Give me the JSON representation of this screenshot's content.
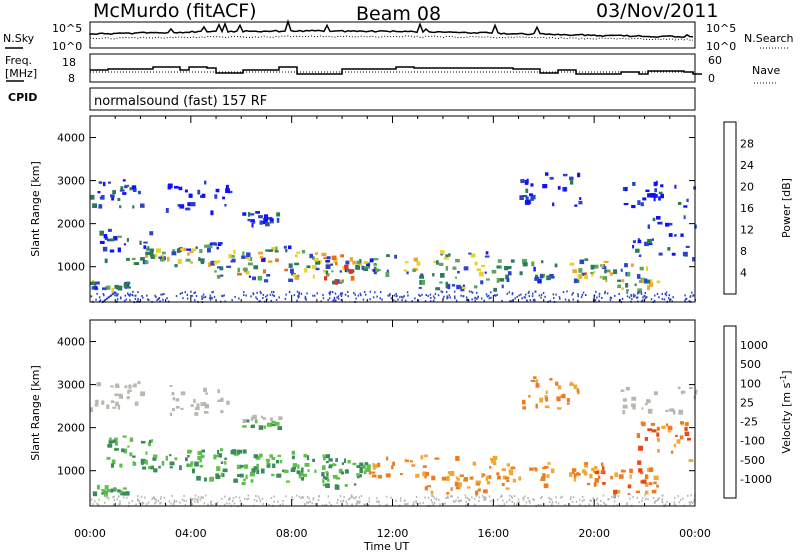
{
  "header": {
    "station": "McMurdo (fitACF)",
    "beam": "Beam 08",
    "date": "03/Nov/2011"
  },
  "noise_panel": {
    "left_label": "N.Sky",
    "right_label": "N.Search",
    "ticks_left": [
      "10^5",
      "10^0"
    ],
    "ticks_right": [
      "10^5",
      "10^0"
    ]
  },
  "freq_panel": {
    "left_label_line1": "Freq.",
    "left_label_line2": "[MHz]",
    "right_label": "Nave",
    "ticks_left": [
      "18",
      "8"
    ],
    "ticks_right": [
      "60",
      "0"
    ]
  },
  "cpid": {
    "label": "CPID",
    "text": "normalsound (fast) 157 RF"
  },
  "chart_data": [
    {
      "type": "heatmap",
      "ylabel": "Slant Range [km]",
      "ylim": [
        180,
        4500
      ],
      "yticks": [
        1000,
        2000,
        3000,
        4000
      ],
      "xlim": [
        0,
        24
      ],
      "xticks": [
        "00:00",
        "04:00",
        "08:00",
        "12:00",
        "16:00",
        "20:00",
        "00:00"
      ],
      "colorbar": {
        "label": "Power [dB]",
        "ticks": [
          "28",
          "24",
          "20",
          "16",
          "12",
          "8",
          "4"
        ],
        "colors": [
          "#1010ff",
          "#2a45c8",
          "#2c7a58",
          "#5aa65a",
          "#e6d228",
          "#f2a228",
          "#f06a1a",
          "#e83018"
        ]
      }
    },
    {
      "type": "heatmap",
      "ylabel": "Slant Range [km]",
      "ylim": [
        180,
        4500
      ],
      "yticks": [
        1000,
        2000,
        3000,
        4000
      ],
      "xlim": [
        0,
        24
      ],
      "xticks": [
        "00:00",
        "04:00",
        "08:00",
        "12:00",
        "16:00",
        "20:00",
        "00:00"
      ],
      "xlabel": "Time UT",
      "colorbar": {
        "label": "Velocity [m s",
        "label_exp": "-1",
        "label_close": "]",
        "ticks": [
          "1000",
          "500",
          "100",
          "25",
          "-25",
          "-100",
          "-500",
          "-1000"
        ],
        "colors": [
          "#1010ff",
          "#2050c0",
          "#3a8a5a",
          "#5ec04a",
          "#b8b8b0",
          "#f0a830",
          "#f07a20",
          "#e84818",
          "#e81010"
        ]
      }
    }
  ]
}
